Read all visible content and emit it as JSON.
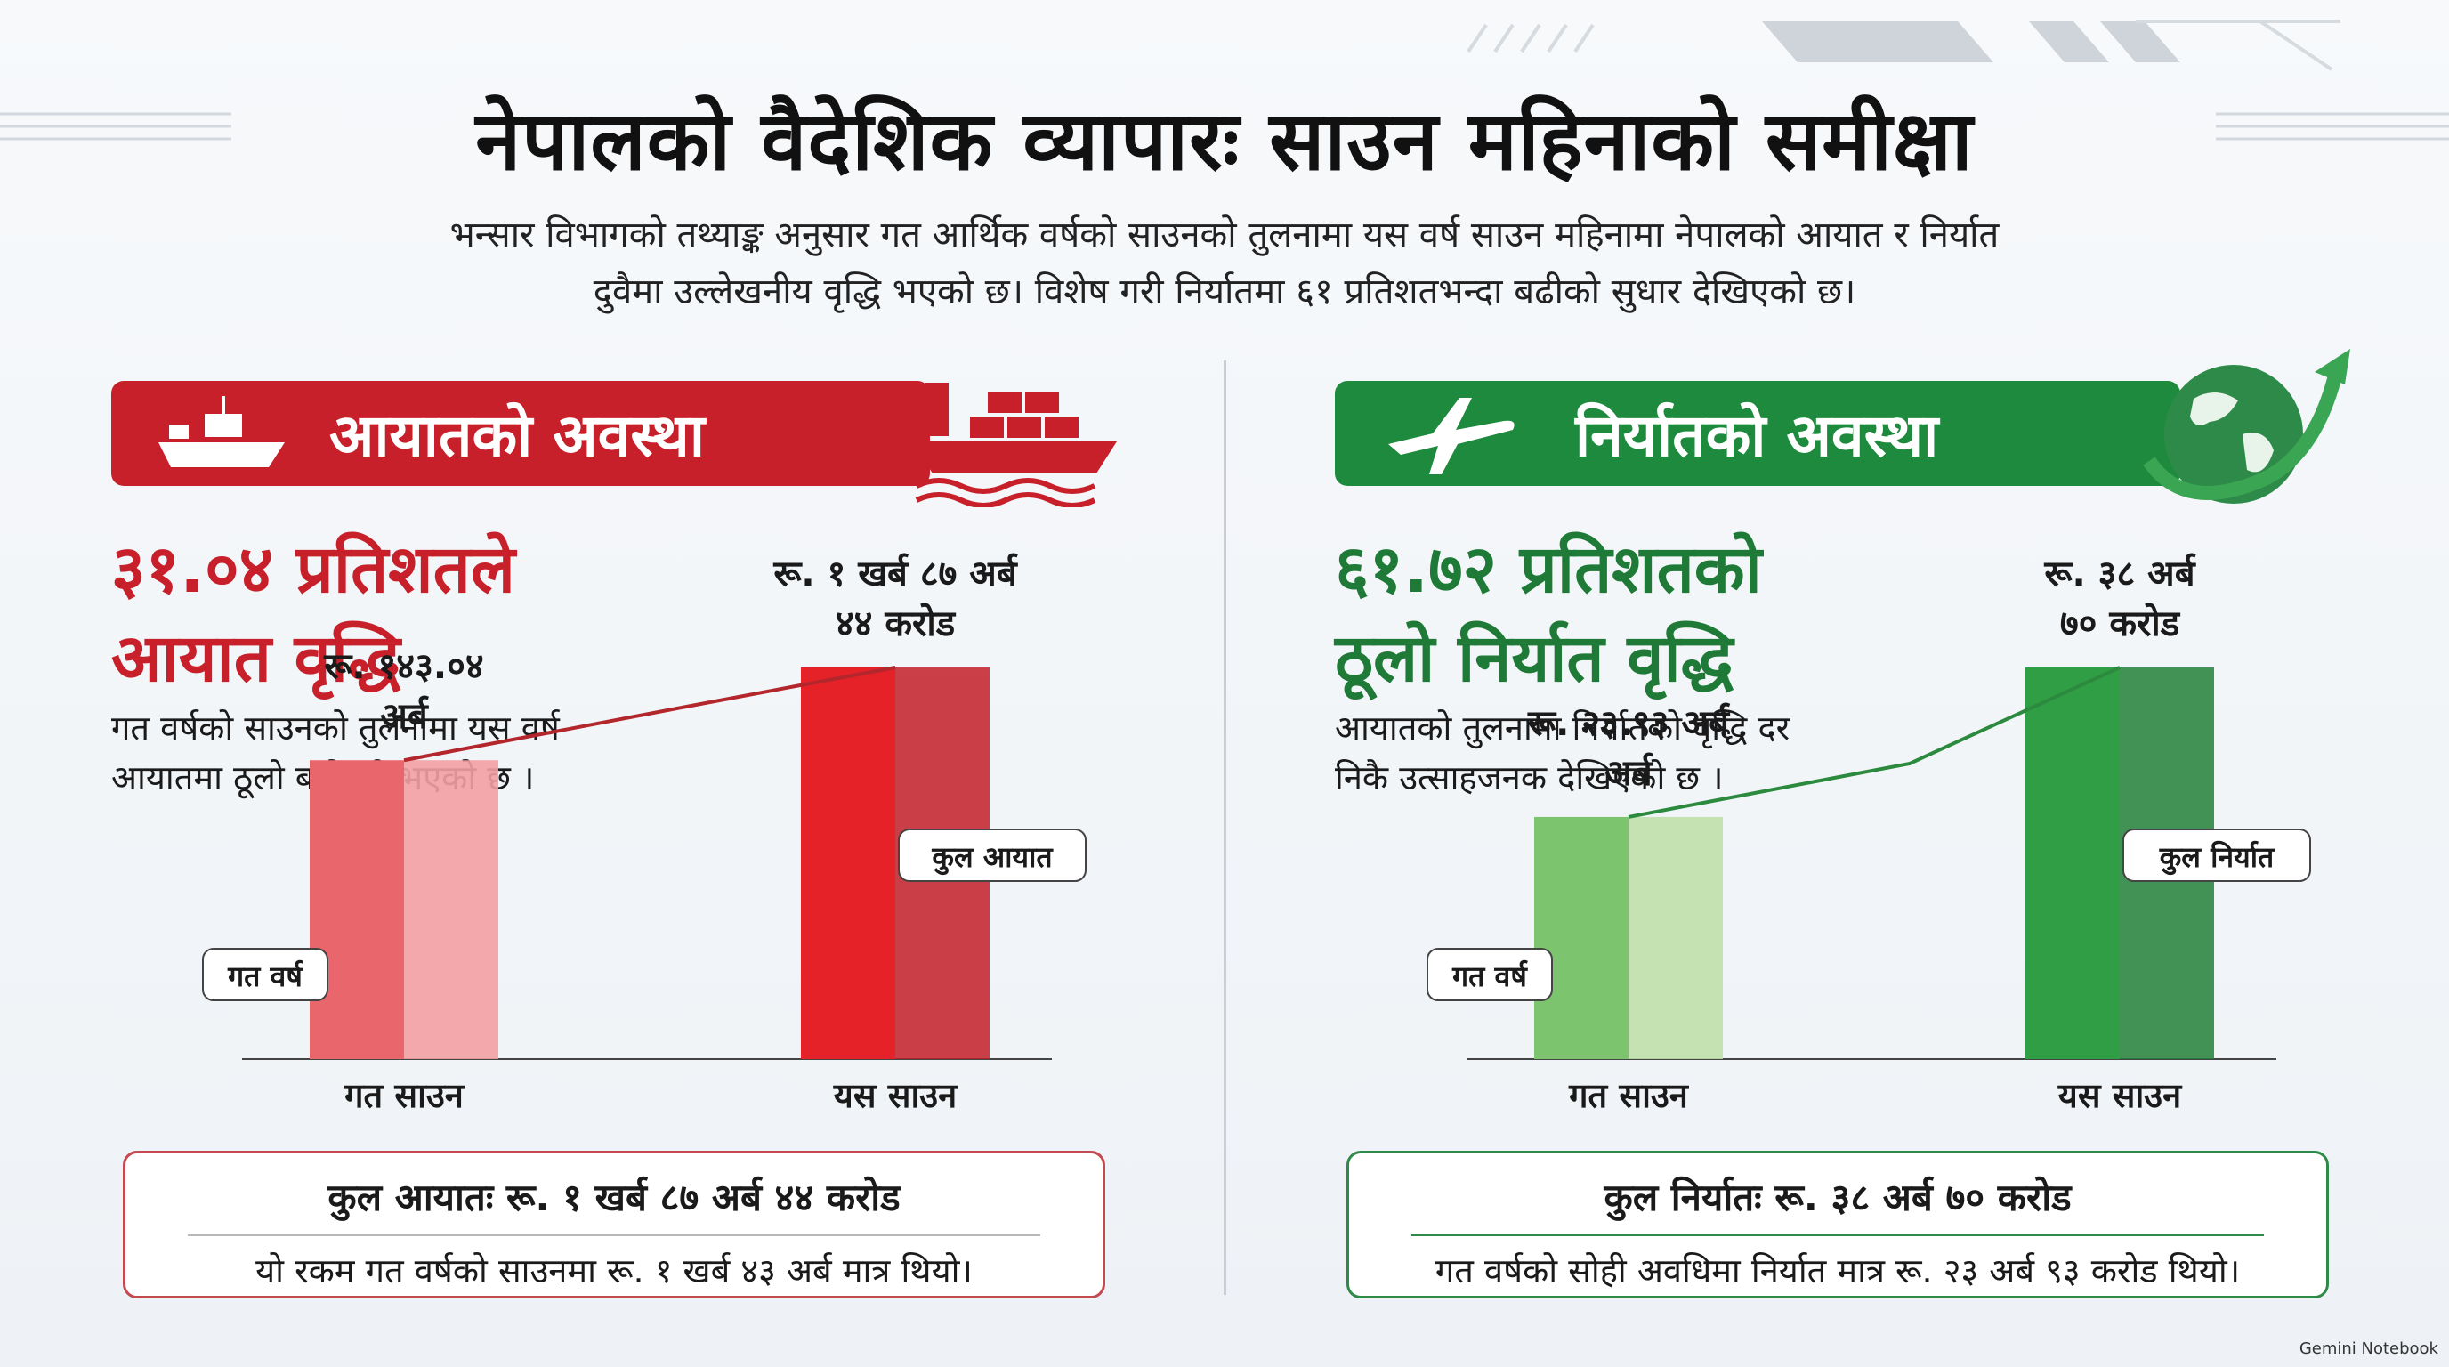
{
  "title": "नेपालको वैदेशिक व्यापारः साउन महिनाको समीक्षा",
  "subtitle_line1": "भन्सार विभागको तथ्याङ्क अनुसार गत आर्थिक वर्षको साउनको तुलनामा यस वर्ष साउन महिनामा नेपालको आयात र निर्यात",
  "subtitle_line2": "दुवैमा उल्लेखनीय वृद्धि भएको छ। विशेष गरी निर्यातमा ६१ प्रतिशतभन्दा बढीको सुधार देखिएको छ।",
  "import": {
    "banner": "आयातको अवस्था",
    "headline_line1": "३१.०४ प्रतिशतले",
    "headline_line2": "आयात वृद्धि",
    "desc_line1": "गत वर्षको साउनको तुलनामा यस वर्ष",
    "desc_line2": "आयातमा ठूलो बढोत्तरी भएको छ ।",
    "summary_main": "कुल आयातः रू. १ खर्ब ८७ अर्ब ४४ करोड",
    "summary_sub": "यो रकम गत वर्षको साउनमा रू. १ खर्ब ४३ अर्ब मात्र थियो।"
  },
  "export": {
    "banner": "निर्यातको अवस्था",
    "headline_line1": "६१.७२ प्रतिशतको",
    "headline_line2": "ठूलो निर्यात वृद्धि",
    "desc_line1": "आयातको तुलनामा निर्यातको वृद्धि दर",
    "desc_line2": "निकै उत्साहजनक देखिएको छ ।",
    "summary_main": "कुल निर्यातः रू. ३८ अर्ब ७० करोड",
    "summary_sub": "गत वर्षको सोही अवधिमा निर्यात मात्र रू. २३ अर्ब ९३ करोड थियो।"
  },
  "watermark": "Gemini Notebook",
  "colors": {
    "import_accent": "#c8202a",
    "export_accent": "#1e8a3e"
  },
  "chart_data": [
    {
      "type": "bar",
      "categories": [
        "गत साउन",
        "यस साउन"
      ],
      "values": [
        143.04,
        187.44
      ],
      "unit": "अर्ब",
      "value_labels": [
        [
          "रू. १४३.०४",
          "अर्ब"
        ],
        [
          "रू. १ खर्ब ८७ अर्ब",
          "४४ करोड"
        ]
      ],
      "callouts": [
        "गत वर्ष",
        "कुल आयात"
      ],
      "colors": [
        "#e9666d",
        "#e52228"
      ],
      "trend_line": true
    },
    {
      "type": "bar",
      "categories": [
        "गत साउन",
        "यस साउन"
      ],
      "values": [
        23.93,
        38.7
      ],
      "unit": "अर्ब",
      "value_labels": [
        [
          "रू. २३.९३ अर्ब",
          "अर्ब"
        ],
        [
          "रू. ३८ अर्ब",
          "७० करोड"
        ]
      ],
      "callouts": [
        "गत वर्ष",
        "कुल निर्यात"
      ],
      "colors": [
        "#7cc46e",
        "#2f9e45"
      ],
      "trend_line": true
    }
  ]
}
